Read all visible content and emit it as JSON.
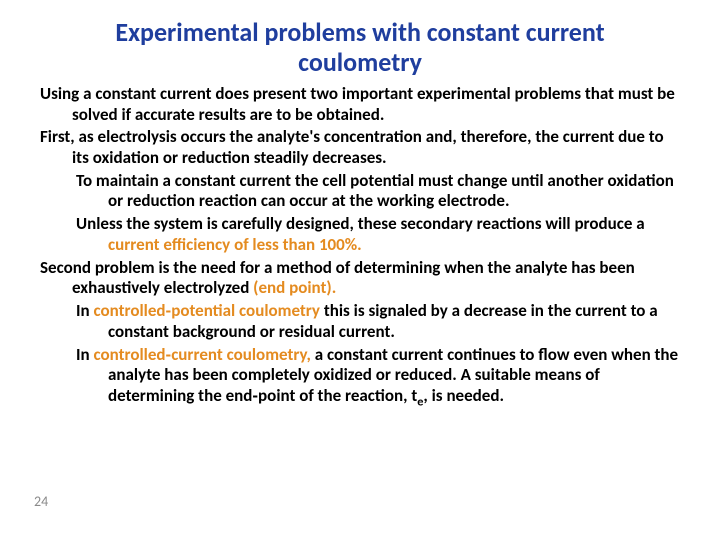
{
  "colors": {
    "title": "#1f3e9e",
    "body": "#000000",
    "accent": "#e48b20",
    "pagenum": "#8a8a8a",
    "background": "#ffffff"
  },
  "fontsizes": {
    "title_pt": 26,
    "body_pt": 17,
    "pagenum_pt": 14
  },
  "title_line1": "Experimental problems with constant current",
  "title_line2": "coulometry",
  "para1a": "Using a constant current does present two important experimental",
  "para1b": "problems that must be solved if accurate results are to be obtained.",
  "para2a": "First, as electrolysis occurs the analyte's concentration and, therefore, the",
  "para2b": "current due to its oxidation or reduction steadily decreases.",
  "para3a": "To maintain a constant current the cell potential must change until",
  "para3b": "another oxidation or reduction reaction can occur at the working",
  "para3c": "electrode.",
  "para4a": "Unless the system is carefully designed, these secondary reactions will",
  "para4b_pre": "produce a ",
  "para4b_accent": "current efficiency of less than 100%.",
  "para5a": "Second problem is the need for a method of determining when the analyte",
  "para5b_pre": "has been exhaustively electrolyzed ",
  "para5b_accent": "(end point).",
  "para6a_pre": "In ",
  "para6a_accent": "controlled‑potential coulometry ",
  "para6a_post": "this is signaled by a decrease in the",
  "para6b": "current to a constant background or residual current.",
  "para7a_pre": "In ",
  "para7a_accent": "controlled‑current coulometry, ",
  "para7a_post": "a constant current continues to flow",
  "para7b": "even when the analyte has been completely oxidized or reduced. A",
  "para7c": "suitable means of determining the end‑point of the reaction, t",
  "para7c_sub": "e",
  "para7c_post": ", is",
  "para7d": "needed.",
  "page_number": "24"
}
